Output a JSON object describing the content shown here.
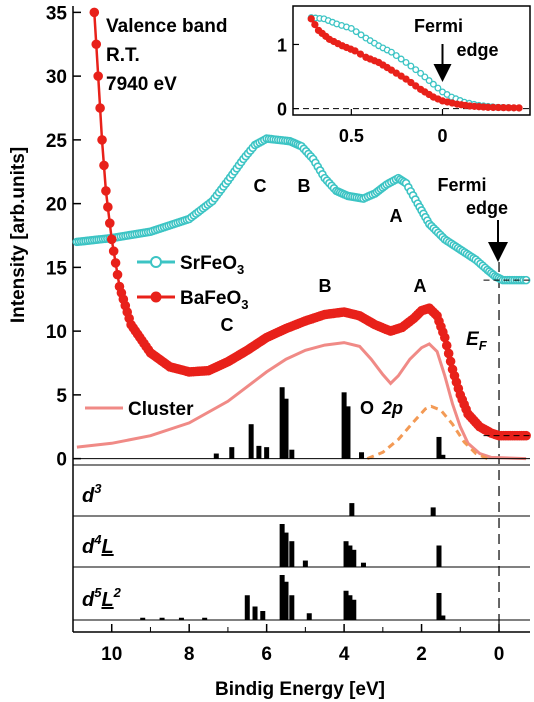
{
  "chart_data": {
    "type": "line",
    "xlabel": "Bindig Energy [eV]",
    "ylabel": "Intensity [arb.units]",
    "xlim": [
      11,
      -0.8
    ],
    "ylim": [
      -0.5,
      35.5
    ],
    "x_reversed": true,
    "xticks": [
      10,
      8,
      6,
      4,
      2,
      0
    ],
    "yticks": [
      0,
      5,
      10,
      15,
      20,
      25,
      30,
      35
    ],
    "annotations": {
      "info_lines": [
        "Valence band",
        "R.T.",
        "7940 eV"
      ],
      "fermi_main": [
        "Fermi",
        "edge"
      ],
      "fermi_inset": [
        "Fermi",
        "edge"
      ],
      "ef_label": "E",
      "ef_sub": "F",
      "o2p": "O",
      "o2p_b": "2p",
      "teal_C": "C",
      "teal_B": "B",
      "teal_A": "A",
      "red_C": "C",
      "red_B": "B",
      "red_A": "A"
    },
    "legend": [
      {
        "name_base": "SrFeO",
        "name_sub": "3",
        "color": "#3cc4c4",
        "marker": "open-circle"
      },
      {
        "name_base": "BaFeO",
        "name_sub": "3",
        "color": "#e8211a",
        "marker": "filled-circle"
      },
      {
        "name_base": "Cluster",
        "name_sub": "",
        "color": "#f08a86",
        "marker": "line"
      }
    ],
    "series": [
      {
        "name": "SrFeO3",
        "color": "#3cc4c4",
        "points": [
          [
            10.9,
            17.0
          ],
          [
            10.0,
            17.3
          ],
          [
            9.0,
            17.8
          ],
          [
            8.0,
            18.8
          ],
          [
            7.4,
            20.2
          ],
          [
            7.0,
            21.8
          ],
          [
            6.6,
            23.5
          ],
          [
            6.3,
            24.6
          ],
          [
            6.0,
            25.1
          ],
          [
            5.7,
            25.0
          ],
          [
            5.4,
            24.9
          ],
          [
            5.1,
            24.5
          ],
          [
            4.8,
            23.5
          ],
          [
            4.5,
            22.0
          ],
          [
            4.2,
            21.0
          ],
          [
            3.9,
            20.6
          ],
          [
            3.5,
            20.4
          ],
          [
            3.2,
            20.8
          ],
          [
            2.9,
            21.5
          ],
          [
            2.6,
            22.0
          ],
          [
            2.4,
            21.6
          ],
          [
            2.1,
            20.0
          ],
          [
            1.8,
            18.4
          ],
          [
            1.4,
            17.2
          ],
          [
            1.0,
            16.4
          ],
          [
            0.6,
            15.6
          ],
          [
            0.3,
            14.8
          ],
          [
            0.1,
            14.3
          ],
          [
            -0.1,
            14.0
          ],
          [
            -0.7,
            14.0
          ]
        ]
      },
      {
        "name": "BaFeO3",
        "color": "#e8211a",
        "points": [
          [
            10.45,
            35.0
          ],
          [
            10.35,
            30.0
          ],
          [
            10.25,
            25.0
          ],
          [
            10.15,
            21.0
          ],
          [
            10.0,
            17.2
          ],
          [
            9.8,
            13.5
          ],
          [
            9.5,
            10.5
          ],
          [
            9.0,
            8.3
          ],
          [
            8.5,
            7.2
          ],
          [
            8.0,
            6.8
          ],
          [
            7.5,
            6.9
          ],
          [
            7.0,
            7.6
          ],
          [
            6.5,
            8.5
          ],
          [
            6.0,
            9.5
          ],
          [
            5.5,
            10.2
          ],
          [
            5.0,
            10.8
          ],
          [
            4.5,
            11.3
          ],
          [
            4.0,
            11.5
          ],
          [
            3.6,
            11.2
          ],
          [
            3.2,
            10.5
          ],
          [
            2.8,
            10.0
          ],
          [
            2.5,
            10.3
          ],
          [
            2.2,
            11.0
          ],
          [
            2.0,
            11.6
          ],
          [
            1.8,
            11.8
          ],
          [
            1.6,
            11.2
          ],
          [
            1.4,
            9.5
          ],
          [
            1.2,
            7.0
          ],
          [
            1.0,
            5.0
          ],
          [
            0.8,
            3.5
          ],
          [
            0.5,
            2.5
          ],
          [
            0.2,
            2.0
          ],
          [
            0.0,
            1.8
          ],
          [
            -0.7,
            1.8
          ]
        ]
      },
      {
        "name": "Cluster",
        "color": "#f08a86",
        "points": [
          [
            10.9,
            0.9
          ],
          [
            10.0,
            1.2
          ],
          [
            9.0,
            1.8
          ],
          [
            8.0,
            2.8
          ],
          [
            7.0,
            4.5
          ],
          [
            6.0,
            6.8
          ],
          [
            5.5,
            7.8
          ],
          [
            5.0,
            8.5
          ],
          [
            4.5,
            8.9
          ],
          [
            4.0,
            9.1
          ],
          [
            3.6,
            8.8
          ],
          [
            3.3,
            7.8
          ],
          [
            3.0,
            6.6
          ],
          [
            2.8,
            5.9
          ],
          [
            2.6,
            6.5
          ],
          [
            2.3,
            7.8
          ],
          [
            2.0,
            8.7
          ],
          [
            1.8,
            9.0
          ],
          [
            1.6,
            8.4
          ],
          [
            1.4,
            6.5
          ],
          [
            1.2,
            4.3
          ],
          [
            1.0,
            2.5
          ],
          [
            0.8,
            1.2
          ],
          [
            0.5,
            0.4
          ],
          [
            0.2,
            0.1
          ],
          [
            -0.7,
            0.0
          ]
        ]
      },
      {
        "name": "O 2p",
        "color": "#f39a55",
        "points": [
          [
            3.4,
            0.0
          ],
          [
            3.0,
            0.5
          ],
          [
            2.6,
            1.5
          ],
          [
            2.2,
            2.9
          ],
          [
            1.9,
            3.9
          ],
          [
            1.75,
            4.1
          ],
          [
            1.5,
            3.8
          ],
          [
            1.2,
            2.7
          ],
          [
            0.9,
            1.3
          ],
          [
            0.6,
            0.4
          ],
          [
            0.3,
            0.0
          ]
        ]
      }
    ],
    "stick_spectrum": {
      "color": "#000000",
      "lines": [
        [
          7.3,
          0.4
        ],
        [
          6.9,
          0.9
        ],
        [
          6.4,
          2.7
        ],
        [
          6.2,
          1.0
        ],
        [
          6.0,
          0.9
        ],
        [
          5.6,
          5.6
        ],
        [
          5.5,
          4.7
        ],
        [
          5.35,
          0.7
        ],
        [
          4.0,
          5.2
        ],
        [
          3.9,
          4.1
        ],
        [
          3.55,
          0.5
        ],
        [
          1.55,
          1.7
        ],
        [
          1.45,
          0.3
        ]
      ]
    },
    "inset": {
      "xlim": [
        0.82,
        -0.48
      ],
      "ylim": [
        -0.1,
        1.6
      ],
      "xticks": [
        0.5,
        0.0
      ],
      "yticks": [
        0,
        1
      ],
      "series": [
        {
          "name": "SrFeO3",
          "color": "#3cc4c4",
          "points": [
            [
              0.72,
              1.42
            ],
            [
              0.65,
              1.4
            ],
            [
              0.58,
              1.32
            ],
            [
              0.5,
              1.25
            ],
            [
              0.42,
              1.1
            ],
            [
              0.35,
              0.98
            ],
            [
              0.28,
              0.88
            ],
            [
              0.2,
              0.72
            ],
            [
              0.12,
              0.55
            ],
            [
              0.05,
              0.38
            ],
            [
              0.0,
              0.26
            ],
            [
              -0.05,
              0.18
            ],
            [
              -0.12,
              0.1
            ],
            [
              -0.2,
              0.05
            ],
            [
              -0.3,
              0.02
            ],
            [
              -0.42,
              0.01
            ]
          ]
        },
        {
          "name": "BaFeO3",
          "color": "#e8211a",
          "points": [
            [
              0.72,
              1.4
            ],
            [
              0.68,
              1.22
            ],
            [
              0.62,
              1.08
            ],
            [
              0.55,
              0.98
            ],
            [
              0.48,
              0.9
            ],
            [
              0.42,
              0.8
            ],
            [
              0.35,
              0.72
            ],
            [
              0.28,
              0.6
            ],
            [
              0.2,
              0.46
            ],
            [
              0.12,
              0.3
            ],
            [
              0.05,
              0.18
            ],
            [
              0.0,
              0.12
            ],
            [
              -0.08,
              0.07
            ],
            [
              -0.15,
              0.04
            ],
            [
              -0.25,
              0.02
            ],
            [
              -0.42,
              0.01
            ]
          ]
        }
      ]
    },
    "subpanels": [
      {
        "label_base": "d",
        "label_sup": "3",
        "label_L": "",
        "label_L_sup": "",
        "sticks": [
          [
            3.8,
            0.3
          ],
          [
            1.7,
            0.2
          ]
        ]
      },
      {
        "label_base": "d",
        "label_sup": "4",
        "label_L": "L",
        "label_L_sup": "",
        "sticks": [
          [
            5.6,
            1.0
          ],
          [
            5.5,
            0.8
          ],
          [
            5.35,
            0.6
          ],
          [
            5.0,
            0.15
          ],
          [
            3.95,
            0.6
          ],
          [
            3.85,
            0.5
          ],
          [
            3.75,
            0.4
          ],
          [
            3.5,
            0.1
          ],
          [
            1.55,
            0.5
          ]
        ]
      },
      {
        "label_base": "d",
        "label_sup": "5",
        "label_L": "L",
        "label_L_sup": "2",
        "sticks": [
          [
            6.5,
            0.55
          ],
          [
            6.3,
            0.3
          ],
          [
            6.1,
            0.2
          ],
          [
            5.6,
            1.0
          ],
          [
            5.5,
            0.85
          ],
          [
            5.35,
            0.55
          ],
          [
            4.9,
            0.15
          ],
          [
            3.95,
            0.65
          ],
          [
            3.85,
            0.55
          ],
          [
            3.75,
            0.45
          ],
          [
            1.55,
            0.6
          ],
          [
            1.45,
            0.1
          ],
          [
            9.2,
            0.05
          ],
          [
            8.7,
            0.05
          ],
          [
            8.2,
            0.05
          ],
          [
            7.6,
            0.05
          ]
        ]
      }
    ]
  }
}
